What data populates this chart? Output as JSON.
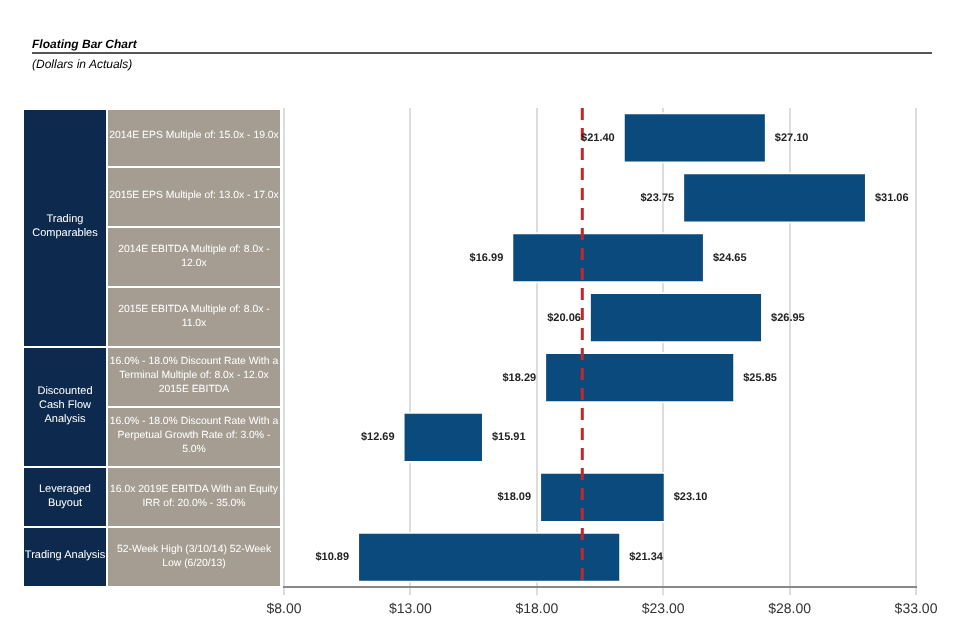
{
  "chart_data": {
    "type": "bar",
    "orientation": "horizontal",
    "title": "Floating Bar Chart",
    "subtitle": "(Dollars in Actuals)",
    "categories": [
      "2014E EPS Multiple of: 15.0x - 19.0x",
      "2015E EPS Multiple of: 13.0x - 17.0x",
      "2014E EBITDA Multiple of: 8.0x - 12.0x",
      "2015E EBITDA Multiple of: 8.0x - 11.0x",
      "16.0% - 18.0% Discount Rate With a Terminal Multiple of: 8.0x - 12.0x 2015E EBITDA",
      "16.0% - 18.0% Discount Rate With a Perpetual Growth Rate of: 3.0% - 5.0%",
      "16.0x 2019E EBITDA With an Equity IRR of: 20.0% - 35.0%",
      "52-Week High (3/10/14) 52-Week Low (6/20/13)"
    ],
    "base": [
      21.4,
      23.75,
      16.99,
      20.06,
      18.29,
      12.69,
      18.09,
      10.89
    ],
    "values": [
      5.7,
      7.31,
      7.66,
      6.89,
      7.56,
      3.22,
      5.01,
      10.45
    ],
    "color": "#0b4a7d",
    "xlim": [
      8,
      33
    ],
    "xticks": [
      {
        "value": 8,
        "label": "$8.00"
      },
      {
        "value": 13,
        "label": "$13.00"
      },
      {
        "value": 18,
        "label": "$18.00"
      },
      {
        "value": 23,
        "label": "$23.00"
      },
      {
        "value": 28,
        "label": "$28.00"
      },
      {
        "value": 33,
        "label": "$33.00"
      }
    ],
    "grid": "x",
    "ref_lines": [
      {
        "axis": "x",
        "value": 19.8,
        "color": "#c0282d",
        "line_style": "dashed"
      }
    ],
    "annotations": [
      "Trading Comparables",
      "Discounted Cash Flow Analysis",
      "Leveraged Buyout",
      "Trading Analysis",
      {
        "text": "$21.40",
        "x": 21.4,
        "y": "2014E EPS Multiple of: 15.0x - 19.0x"
      },
      {
        "text": "$27.10",
        "x": 27.1,
        "y": "2014E EPS Multiple of: 15.0x - 19.0x"
      },
      {
        "text": "$23.75",
        "x": 23.75,
        "y": "2015E EPS Multiple of: 13.0x - 17.0x"
      },
      {
        "text": "$31.06",
        "x": 31.06,
        "y": "2015E EPS Multiple of: 13.0x - 17.0x"
      },
      {
        "text": "$16.99",
        "x": 16.99,
        "y": "2014E EBITDA Multiple of: 8.0x - 12.0x"
      },
      {
        "text": "$24.65",
        "x": 24.65,
        "y": "2014E EBITDA Multiple of: 8.0x - 12.0x"
      },
      {
        "text": "$20.06",
        "x": 20.06,
        "y": "2015E EBITDA Multiple of: 8.0x - 11.0x"
      },
      {
        "text": "$26.95",
        "x": 26.95,
        "y": "2015E EBITDA Multiple of: 8.0x - 11.0x"
      },
      {
        "text": "$18.29",
        "x": 18.29,
        "y": "16.0% - 18.0% Discount Rate With a Terminal Multiple of: 8.0x - 12.0x 2015E EBITDA"
      },
      {
        "text": "$25.85",
        "x": 25.85,
        "y": "16.0% - 18.0% Discount Rate With a Terminal Multiple of: 8.0x - 12.0x 2015E EBITDA"
      },
      {
        "text": "$12.69",
        "x": 12.69,
        "y": "16.0% - 18.0% Discount Rate With a Perpetual Growth Rate of: 3.0% - 5.0%"
      },
      {
        "text": "$15.91",
        "x": 15.91,
        "y": "16.0% - 18.0% Discount Rate With a Perpetual Growth Rate of: 3.0% - 5.0%"
      },
      {
        "text": "$18.09",
        "x": 18.09,
        "y": "16.0x 2019E EBITDA With an Equity IRR of: 20.0% - 35.0%"
      },
      {
        "text": "$23.10",
        "x": 23.1,
        "y": "16.0x 2019E EBITDA With an Equity IRR of: 20.0% - 35.0%"
      },
      {
        "text": "$10.89",
        "x": 10.89,
        "y": "52-Week High (3/10/14) 52-Week Low (6/20/13)"
      },
      {
        "text": "$21.34",
        "x": 21.34,
        "y": "52-Week High (3/10/14) 52-Week Low (6/20/13)"
      }
    ]
  }
}
